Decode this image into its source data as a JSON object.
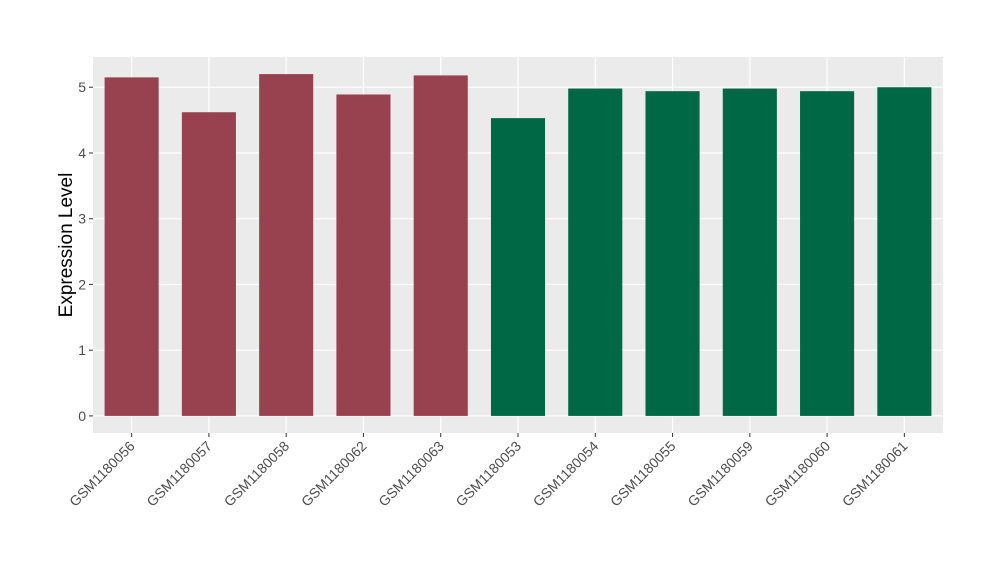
{
  "chart_data": {
    "type": "bar",
    "y_label": "Expression Level",
    "categories": [
      "GSM1180056",
      "GSM1180057",
      "GSM1180058",
      "GSM1180062",
      "GSM1180063",
      "GSM1180053",
      "GSM1180054",
      "GSM1180055",
      "GSM1180059",
      "GSM1180060",
      "GSM1180061"
    ],
    "values": [
      5.15,
      4.62,
      5.2,
      4.89,
      5.18,
      4.53,
      4.98,
      4.94,
      4.98,
      4.94,
      5.0
    ],
    "colors": [
      "#984250",
      "#984250",
      "#984250",
      "#984250",
      "#984250",
      "#006845",
      "#006845",
      "#006845",
      "#006845",
      "#006845",
      "#006845"
    ],
    "ylim": [
      -0.26,
      5.46
    ],
    "yticks": [
      0,
      1,
      2,
      3,
      4,
      5
    ],
    "grid": true
  }
}
